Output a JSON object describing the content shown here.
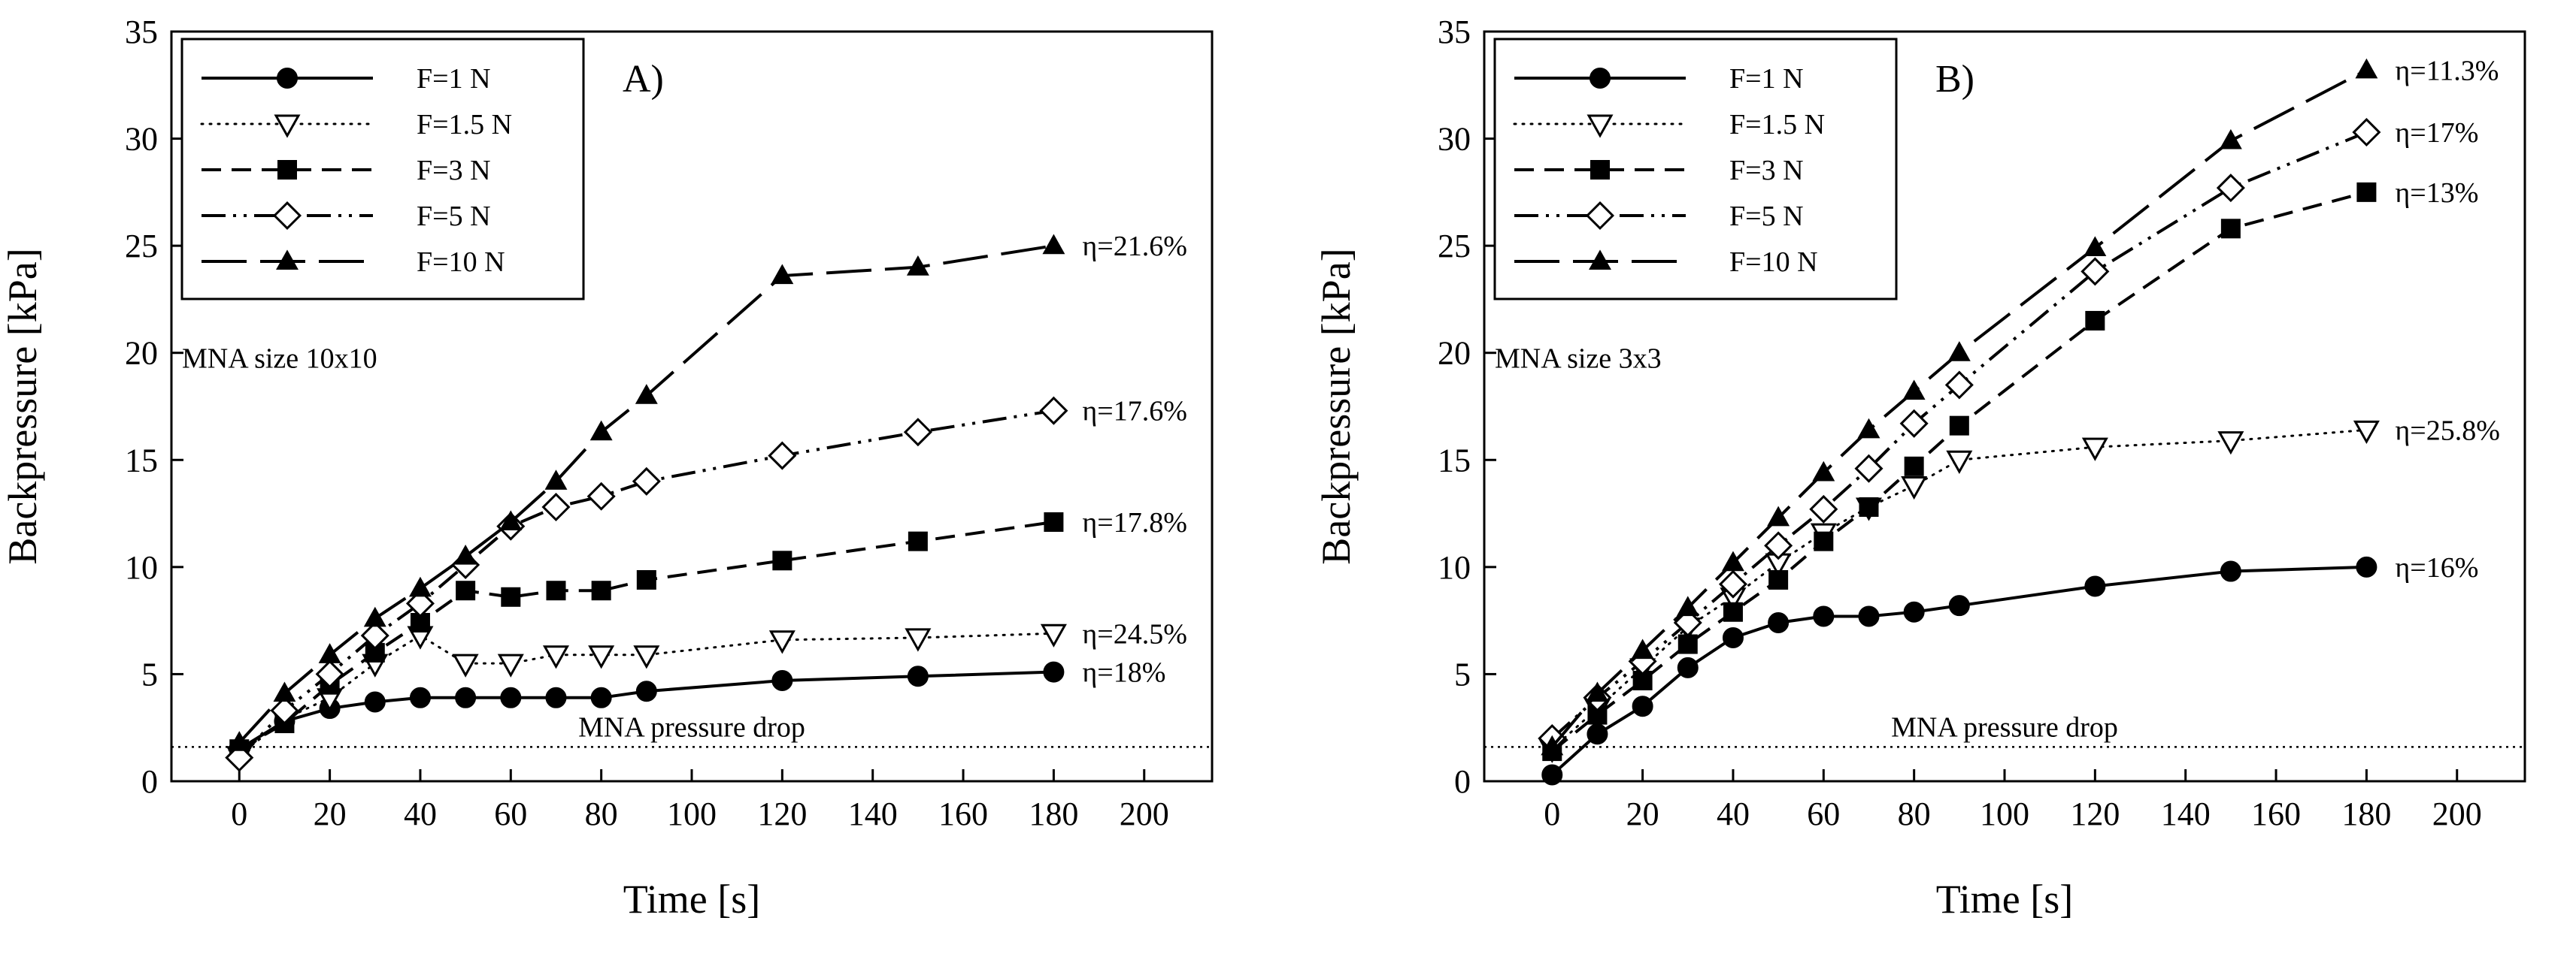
{
  "chart_data": [
    {
      "type": "line",
      "panel_label": "A)",
      "annotation": "MNA size 10x10",
      "xlabel": "Time [s]",
      "ylabel": "Backpressure [kPa]",
      "xlim": [
        -15,
        215
      ],
      "ylim": [
        0,
        35
      ],
      "xticks": [
        0,
        20,
        40,
        60,
        80,
        100,
        120,
        140,
        160,
        180,
        200
      ],
      "yticks": [
        0,
        5,
        10,
        15,
        20,
        25,
        30,
        35
      ],
      "legend_position": "top-left",
      "reference_line": {
        "label": "MNA pressure drop",
        "y": 1.6,
        "style": "dotted"
      },
      "series": [
        {
          "name": "F=1 N",
          "style": "solid",
          "marker": "circle-filled",
          "x": [
            0,
            10,
            20,
            30,
            40,
            50,
            60,
            70,
            80,
            90,
            120,
            150,
            180
          ],
          "y": [
            1.5,
            2.8,
            3.4,
            3.7,
            3.9,
            3.9,
            3.9,
            3.9,
            3.9,
            4.2,
            4.7,
            4.9,
            5.1
          ],
          "end_label": "η=18%"
        },
        {
          "name": "F=1.5 N",
          "style": "dotted",
          "marker": "triangle-down-open",
          "x": [
            0,
            10,
            20,
            30,
            40,
            50,
            60,
            70,
            80,
            90,
            120,
            150,
            180
          ],
          "y": [
            1.2,
            2.9,
            3.9,
            5.5,
            6.8,
            5.5,
            5.5,
            5.9,
            5.9,
            5.9,
            6.6,
            6.7,
            6.9
          ],
          "end_label": "η=24.5%"
        },
        {
          "name": "F=3 N",
          "style": "short-dash",
          "marker": "square-filled",
          "x": [
            0,
            10,
            20,
            30,
            40,
            50,
            60,
            70,
            80,
            90,
            120,
            150,
            180
          ],
          "y": [
            1.5,
            2.7,
            4.5,
            6.0,
            7.4,
            8.9,
            8.6,
            8.9,
            8.9,
            9.4,
            10.3,
            11.2,
            12.1
          ],
          "end_label": "η=17.8%"
        },
        {
          "name": "F=5 N",
          "style": "dash-dot-dot",
          "marker": "diamond-open",
          "x": [
            0,
            10,
            20,
            30,
            40,
            50,
            60,
            70,
            80,
            90,
            120,
            150,
            180
          ],
          "y": [
            1.1,
            3.3,
            5.0,
            6.8,
            8.3,
            10.1,
            11.9,
            12.8,
            13.3,
            14.0,
            15.2,
            16.3,
            17.3
          ],
          "end_label": "η=17.6%"
        },
        {
          "name": "F=10 N",
          "style": "long-dash",
          "marker": "triangle-up-filled",
          "x": [
            0,
            10,
            20,
            30,
            40,
            50,
            60,
            70,
            80,
            90,
            120,
            150,
            180
          ],
          "y": [
            1.8,
            4.1,
            5.9,
            7.6,
            9.0,
            10.5,
            12.1,
            14.0,
            16.3,
            18.0,
            23.6,
            24.0,
            25.0
          ],
          "end_label": "η=21.6%"
        }
      ]
    },
    {
      "type": "line",
      "panel_label": "B)",
      "annotation": "MNA size 3x3",
      "xlabel": "Time [s]",
      "ylabel": "Backpressure [kPa]",
      "xlim": [
        -15,
        215
      ],
      "ylim": [
        0,
        35
      ],
      "xticks": [
        0,
        20,
        40,
        60,
        80,
        100,
        120,
        140,
        160,
        180,
        200
      ],
      "yticks": [
        0,
        5,
        10,
        15,
        20,
        25,
        30,
        35
      ],
      "legend_position": "top-left",
      "reference_line": {
        "label": "MNA pressure drop",
        "y": 1.6,
        "style": "dotted"
      },
      "series": [
        {
          "name": "F=1 N",
          "style": "solid",
          "marker": "circle-filled",
          "x": [
            0,
            10,
            20,
            30,
            40,
            50,
            60,
            70,
            80,
            90,
            120,
            150,
            180
          ],
          "y": [
            0.3,
            2.2,
            3.5,
            5.3,
            6.7,
            7.4,
            7.7,
            7.7,
            7.9,
            8.2,
            9.1,
            9.8,
            10.0
          ],
          "end_label": "η=16%"
        },
        {
          "name": "F=1.5 N",
          "style": "dotted",
          "marker": "triangle-down-open",
          "x": [
            0,
            10,
            20,
            30,
            40,
            50,
            60,
            70,
            80,
            90,
            120,
            150,
            180
          ],
          "y": [
            1.5,
            3.4,
            5.3,
            7.2,
            8.6,
            10.2,
            11.6,
            12.8,
            13.8,
            15.0,
            15.6,
            15.9,
            16.4
          ],
          "end_label": "η=25.8%"
        },
        {
          "name": "F=3 N",
          "style": "short-dash",
          "marker": "square-filled",
          "x": [
            0,
            10,
            20,
            30,
            40,
            50,
            60,
            70,
            80,
            90,
            120,
            150,
            180
          ],
          "y": [
            1.4,
            3.1,
            4.7,
            6.4,
            7.9,
            9.4,
            11.2,
            12.8,
            14.7,
            16.6,
            21.5,
            25.8,
            27.5
          ],
          "end_label": "η=13%"
        },
        {
          "name": "F=5 N",
          "style": "dash-dot-dot",
          "marker": "diamond-open",
          "x": [
            0,
            10,
            20,
            30,
            40,
            50,
            60,
            70,
            80,
            90,
            120,
            150,
            180
          ],
          "y": [
            2.0,
            3.9,
            5.6,
            7.4,
            9.2,
            11.0,
            12.7,
            14.6,
            16.7,
            18.5,
            23.8,
            27.7,
            30.3
          ],
          "end_label": "η=17%"
        },
        {
          "name": "F=10 N",
          "style": "long-dash",
          "marker": "triangle-up-filled",
          "x": [
            0,
            10,
            20,
            30,
            40,
            50,
            60,
            70,
            80,
            90,
            120,
            150,
            180
          ],
          "y": [
            1.6,
            4.1,
            6.1,
            8.1,
            10.2,
            12.3,
            14.4,
            16.4,
            18.2,
            20.0,
            24.9,
            29.9,
            33.2
          ],
          "end_label": "η=11.3%"
        }
      ]
    }
  ]
}
